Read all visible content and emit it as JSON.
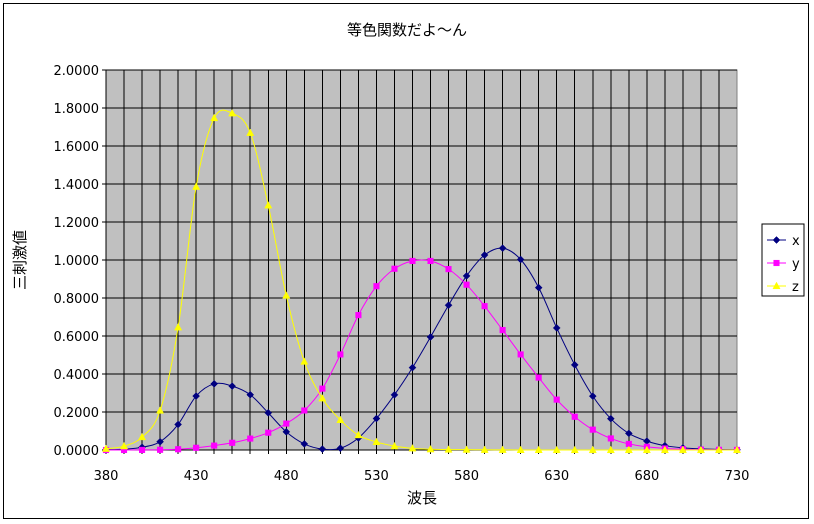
{
  "chart_data": {
    "type": "line",
    "title": "等色関数だよ〜ん",
    "xlabel": "波長",
    "ylabel": "三刺激値",
    "xlim": [
      380,
      730
    ],
    "ylim": [
      0,
      2
    ],
    "x_ticks": [
      "380",
      "430",
      "480",
      "530",
      "580",
      "630",
      "680",
      "730"
    ],
    "y_ticks": [
      "0.0000",
      "0.2000",
      "0.4000",
      "0.6000",
      "0.8000",
      "1.0000",
      "1.2000",
      "1.4000",
      "1.6000",
      "1.8000",
      "2.0000"
    ],
    "grid": true,
    "legend_position": "right",
    "plot_background": "#c0c0c0",
    "x": [
      380,
      390,
      400,
      410,
      420,
      430,
      440,
      450,
      460,
      470,
      480,
      490,
      500,
      510,
      520,
      530,
      540,
      550,
      560,
      570,
      580,
      590,
      600,
      610,
      620,
      630,
      640,
      650,
      660,
      670,
      680,
      690,
      700,
      710,
      720,
      730
    ],
    "series": [
      {
        "name": "x",
        "color": "#000080",
        "marker": "diamond",
        "values": [
          0.0014,
          0.0042,
          0.0143,
          0.0435,
          0.1344,
          0.2839,
          0.3483,
          0.3362,
          0.2908,
          0.1954,
          0.0956,
          0.032,
          0.0049,
          0.0093,
          0.0633,
          0.1655,
          0.2904,
          0.4334,
          0.5945,
          0.7621,
          0.9163,
          1.0263,
          1.0622,
          1.0026,
          0.8544,
          0.6424,
          0.4479,
          0.2835,
          0.1649,
          0.0874,
          0.0468,
          0.0227,
          0.0114,
          0.0058,
          0.0029,
          0.0014
        ]
      },
      {
        "name": "y",
        "color": "#ff00ff",
        "marker": "square",
        "values": [
          0.0,
          0.0001,
          0.0004,
          0.0012,
          0.004,
          0.0116,
          0.023,
          0.038,
          0.06,
          0.091,
          0.139,
          0.208,
          0.323,
          0.503,
          0.71,
          0.862,
          0.954,
          0.995,
          0.995,
          0.952,
          0.87,
          0.757,
          0.631,
          0.503,
          0.381,
          0.265,
          0.175,
          0.107,
          0.061,
          0.032,
          0.017,
          0.0082,
          0.0041,
          0.0021,
          0.001,
          0.0005
        ]
      },
      {
        "name": "z",
        "color": "#ffff00",
        "marker": "triangle",
        "values": [
          0.0065,
          0.0201,
          0.0679,
          0.2074,
          0.6456,
          1.3856,
          1.7471,
          1.7721,
          1.6692,
          1.2876,
          0.813,
          0.4652,
          0.272,
          0.1582,
          0.0782,
          0.0422,
          0.0203,
          0.0087,
          0.0039,
          0.0021,
          0.0017,
          0.0011,
          0.0008,
          0.0003,
          0.0002,
          0.0,
          0.0,
          0.0,
          0.0,
          0.0,
          0.0,
          0.0,
          0.0,
          0.0,
          0.0,
          0.0
        ]
      }
    ]
  }
}
